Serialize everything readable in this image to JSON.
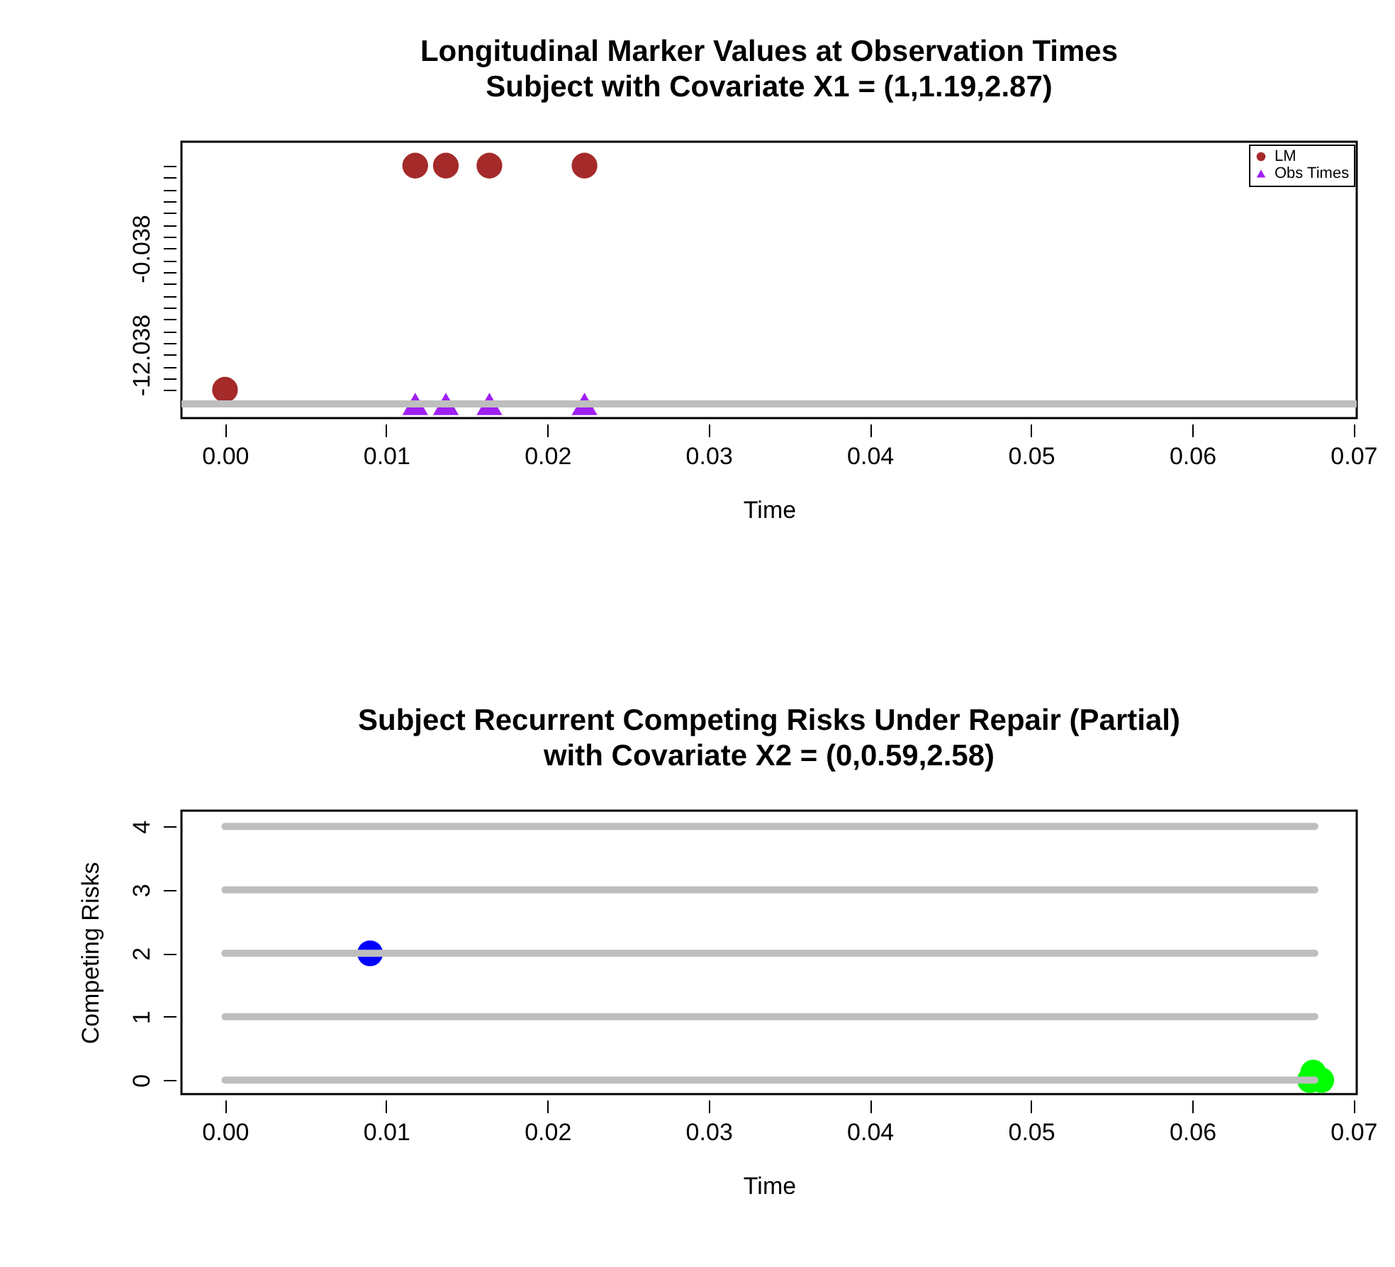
{
  "chart_data": [
    {
      "type": "scatter",
      "title": "Longitudinal Marker Values at Observation Times",
      "subtitle": "Subject with Covariate X1 =  (1,1.19,2.87)",
      "xlabel": "Time",
      "xlim": [
        -0.0027,
        0.0702
      ],
      "xticks": [
        {
          "value": 0,
          "label": "0.00"
        },
        {
          "value": 0.01,
          "label": "0.01"
        },
        {
          "value": 0.02,
          "label": "0.02"
        },
        {
          "value": 0.03,
          "label": "0.03"
        },
        {
          "value": 0.04,
          "label": "0.04"
        },
        {
          "value": 0.05,
          "label": "0.05"
        },
        {
          "value": 0.06,
          "label": "0.06"
        },
        {
          "value": 0.07,
          "label": "0.07"
        }
      ],
      "ylim": [
        -19.2,
        12.0
      ],
      "yticks": [
        {
          "value": 9.295,
          "label": null
        },
        {
          "value": 7.962,
          "label": null
        },
        {
          "value": 6.628,
          "label": null
        },
        {
          "value": 5.295,
          "label": null
        },
        {
          "value": 3.962,
          "label": null
        },
        {
          "value": 2.628,
          "label": null
        },
        {
          "value": 1.295,
          "label": null
        },
        {
          "value": -0.038,
          "label": "-0.038"
        },
        {
          "value": -1.371,
          "label": null
        },
        {
          "value": -2.705,
          "label": null
        },
        {
          "value": -4.038,
          "label": null
        },
        {
          "value": -5.371,
          "label": null
        },
        {
          "value": -6.705,
          "label": null
        },
        {
          "value": -8.038,
          "label": null
        },
        {
          "value": -9.371,
          "label": null
        },
        {
          "value": -10.705,
          "label": null
        },
        {
          "value": -12.038,
          "label": "-12.038"
        },
        {
          "value": -13.371,
          "label": null
        },
        {
          "value": -14.705,
          "label": null
        },
        {
          "value": -16.038,
          "label": null
        }
      ],
      "legend": "top right",
      "grid": false,
      "series": [
        {
          "type": "line",
          "color": "#bebebe",
          "x": [
            -0.0027,
            0.0702
          ],
          "values": [
            -17.6,
            -17.6
          ]
        },
        {
          "name": "LM",
          "color": "#a52a2a",
          "marker": "circle",
          "x": [
            0.0,
            0.0118,
            0.0137,
            0.0164,
            0.0223
          ],
          "values": [
            -16.0,
            9.3,
            9.3,
            9.3,
            9.3
          ]
        },
        {
          "name": "Obs Times",
          "color": "#a020f0",
          "marker": "triangle",
          "x": [
            0.0118,
            0.0137,
            0.0164,
            0.0223
          ],
          "values": [
            -17.6,
            -17.6,
            -17.6,
            -17.6
          ]
        }
      ]
    },
    {
      "type": "scatter",
      "title": "Subject Recurrent Competing Risks Under Repair (Partial)",
      "subtitle": "with Covariate X2 = (0,0.59,2.58)",
      "xlabel": "Time",
      "ylabel": "Competing Risks",
      "xlim": [
        -0.0027,
        0.0702
      ],
      "xticks": [
        {
          "value": 0,
          "label": "0.00"
        },
        {
          "value": 0.01,
          "label": "0.01"
        },
        {
          "value": 0.02,
          "label": "0.02"
        },
        {
          "value": 0.03,
          "label": "0.03"
        },
        {
          "value": 0.04,
          "label": "0.04"
        },
        {
          "value": 0.05,
          "label": "0.05"
        },
        {
          "value": 0.06,
          "label": "0.06"
        },
        {
          "value": 0.07,
          "label": "0.07"
        }
      ],
      "ylim": [
        -0.22,
        4.25
      ],
      "yticks": [
        0,
        1,
        2,
        3,
        4
      ],
      "legend": false,
      "grid": false,
      "series": [
        {
          "type": "line",
          "color": "#bebebe",
          "x": [
            0,
            0.0676
          ],
          "values": [
            0,
            0
          ]
        },
        {
          "type": "line",
          "color": "#bebebe",
          "x": [
            0,
            0.0676
          ],
          "values": [
            1,
            1
          ]
        },
        {
          "type": "line",
          "color": "#bebebe",
          "x": [
            0,
            0.0676
          ],
          "values": [
            2,
            2
          ]
        },
        {
          "type": "line",
          "color": "#bebebe",
          "x": [
            0,
            0.0676
          ],
          "values": [
            3,
            3
          ]
        },
        {
          "type": "line",
          "color": "#bebebe",
          "x": [
            0,
            0.0676
          ],
          "values": [
            4,
            4
          ]
        },
        {
          "color": "#0000ff",
          "marker": "circle",
          "x": [
            0.009
          ],
          "values": [
            2
          ]
        },
        {
          "color": "#00ff00",
          "marker": "circle",
          "x": [
            0.0673,
            0.0675,
            0.068
          ],
          "values": [
            0,
            0.12,
            0
          ]
        }
      ]
    }
  ]
}
